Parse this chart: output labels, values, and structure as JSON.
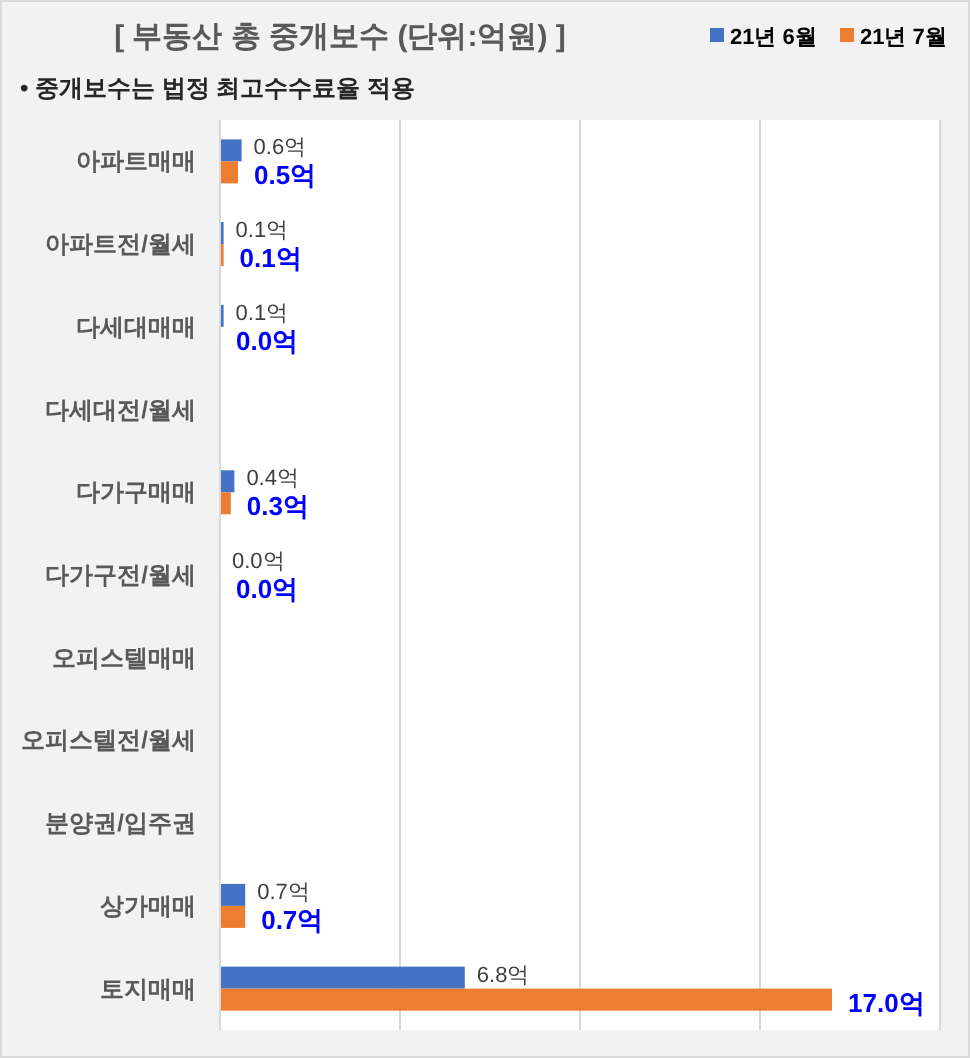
{
  "chart_data": {
    "type": "bar",
    "orientation": "horizontal",
    "title": "[ 부동산 총 중개보수 (단위:억원) ]",
    "annotations": [
      "• 중개보수는 법정 최고수수료율 적용"
    ],
    "categories": [
      "아파트매매",
      "아파트전/월세",
      "다세대매매",
      "다세대전/월세",
      "다가구매매",
      "다가구전/월세",
      "오피스텔매매",
      "오피스텔전/월세",
      "분양권/입주권",
      "상가매매",
      "토지매매"
    ],
    "series": [
      {
        "name": "21년 6월",
        "color": "#4472c4",
        "values": [
          0.6,
          0.1,
          0.1,
          null,
          0.4,
          0.0,
          null,
          null,
          null,
          0.7,
          6.8
        ],
        "value_labels": [
          "0.6억",
          "0.1억",
          "0.1억",
          null,
          "0.4억",
          "0.0억",
          null,
          null,
          null,
          "0.7억",
          "6.8억"
        ]
      },
      {
        "name": "21년 7월",
        "color": "#ed7d31",
        "values": [
          0.5,
          0.1,
          0.0,
          null,
          0.3,
          0.0,
          null,
          null,
          null,
          0.7,
          17.0
        ],
        "value_labels": [
          "0.5억",
          "0.1억",
          "0.0억",
          null,
          "0.3억",
          "0.0억",
          null,
          null,
          null,
          "0.7억",
          "17.0억"
        ]
      }
    ],
    "xlim": [
      0,
      20
    ],
    "xticks": [
      {
        "value": 0,
        "label": null
      },
      {
        "value": 5,
        "label": null
      },
      {
        "value": 10,
        "label": null
      },
      {
        "value": 15,
        "label": null
      },
      {
        "value": 20,
        "label": null
      }
    ],
    "grid": "x",
    "legend": "top right"
  }
}
